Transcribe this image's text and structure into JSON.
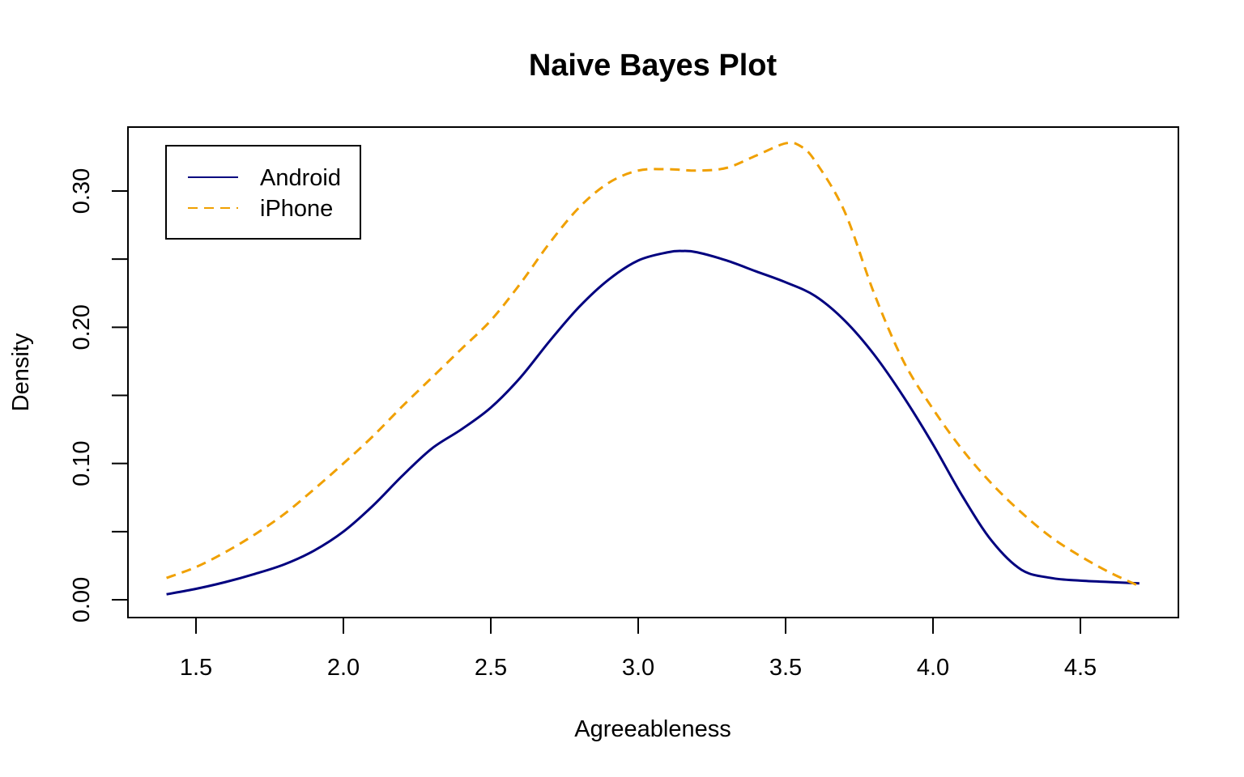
{
  "chart_data": {
    "type": "line",
    "title": "Naive Bayes Plot",
    "xlabel": "Agreeableness",
    "ylabel": "Density",
    "xlim": [
      1.4,
      4.7
    ],
    "ylim": [
      0.0,
      0.335
    ],
    "x_ticks": [
      "1.5",
      "2.0",
      "2.5",
      "3.0",
      "3.5",
      "4.0",
      "4.5"
    ],
    "x_tick_values": [
      1.5,
      2.0,
      2.5,
      3.0,
      3.5,
      4.0,
      4.5
    ],
    "y_ticks": [
      "0.00",
      "0.10",
      "0.20",
      "0.30"
    ],
    "y_tick_values": [
      0.0,
      0.1,
      0.2,
      0.3
    ],
    "y_minor_tick_values": [
      0.05,
      0.15,
      0.25
    ],
    "grid": false,
    "legend_position": "top-left",
    "series": [
      {
        "name": "Android",
        "color": "#00007f",
        "dash": "solid",
        "x": [
          1.4,
          1.5,
          1.6,
          1.7,
          1.8,
          1.9,
          2.0,
          2.1,
          2.2,
          2.3,
          2.4,
          2.5,
          2.6,
          2.7,
          2.8,
          2.9,
          3.0,
          3.1,
          3.15,
          3.2,
          3.3,
          3.4,
          3.5,
          3.6,
          3.7,
          3.8,
          3.9,
          4.0,
          4.1,
          4.2,
          4.3,
          4.4,
          4.5,
          4.6,
          4.7
        ],
        "y": [
          0.004,
          0.008,
          0.013,
          0.019,
          0.026,
          0.036,
          0.05,
          0.069,
          0.091,
          0.111,
          0.125,
          0.141,
          0.163,
          0.19,
          0.215,
          0.235,
          0.249,
          0.255,
          0.256,
          0.255,
          0.249,
          0.241,
          0.233,
          0.223,
          0.205,
          0.18,
          0.149,
          0.114,
          0.076,
          0.043,
          0.022,
          0.016,
          0.014,
          0.013,
          0.012
        ]
      },
      {
        "name": "iPhone",
        "color": "#f0a000",
        "dash": "dashed",
        "x": [
          1.4,
          1.5,
          1.6,
          1.7,
          1.8,
          1.9,
          2.0,
          2.1,
          2.2,
          2.3,
          2.4,
          2.5,
          2.6,
          2.7,
          2.8,
          2.9,
          3.0,
          3.1,
          3.2,
          3.3,
          3.4,
          3.5,
          3.55,
          3.6,
          3.7,
          3.8,
          3.9,
          4.0,
          4.1,
          4.2,
          4.3,
          4.4,
          4.5,
          4.6,
          4.7
        ],
        "y": [
          0.016,
          0.024,
          0.035,
          0.048,
          0.063,
          0.081,
          0.1,
          0.12,
          0.142,
          0.163,
          0.184,
          0.205,
          0.232,
          0.262,
          0.288,
          0.306,
          0.315,
          0.316,
          0.315,
          0.317,
          0.326,
          0.335,
          0.333,
          0.322,
          0.285,
          0.225,
          0.175,
          0.14,
          0.11,
          0.085,
          0.064,
          0.046,
          0.032,
          0.02,
          0.01
        ]
      }
    ]
  }
}
